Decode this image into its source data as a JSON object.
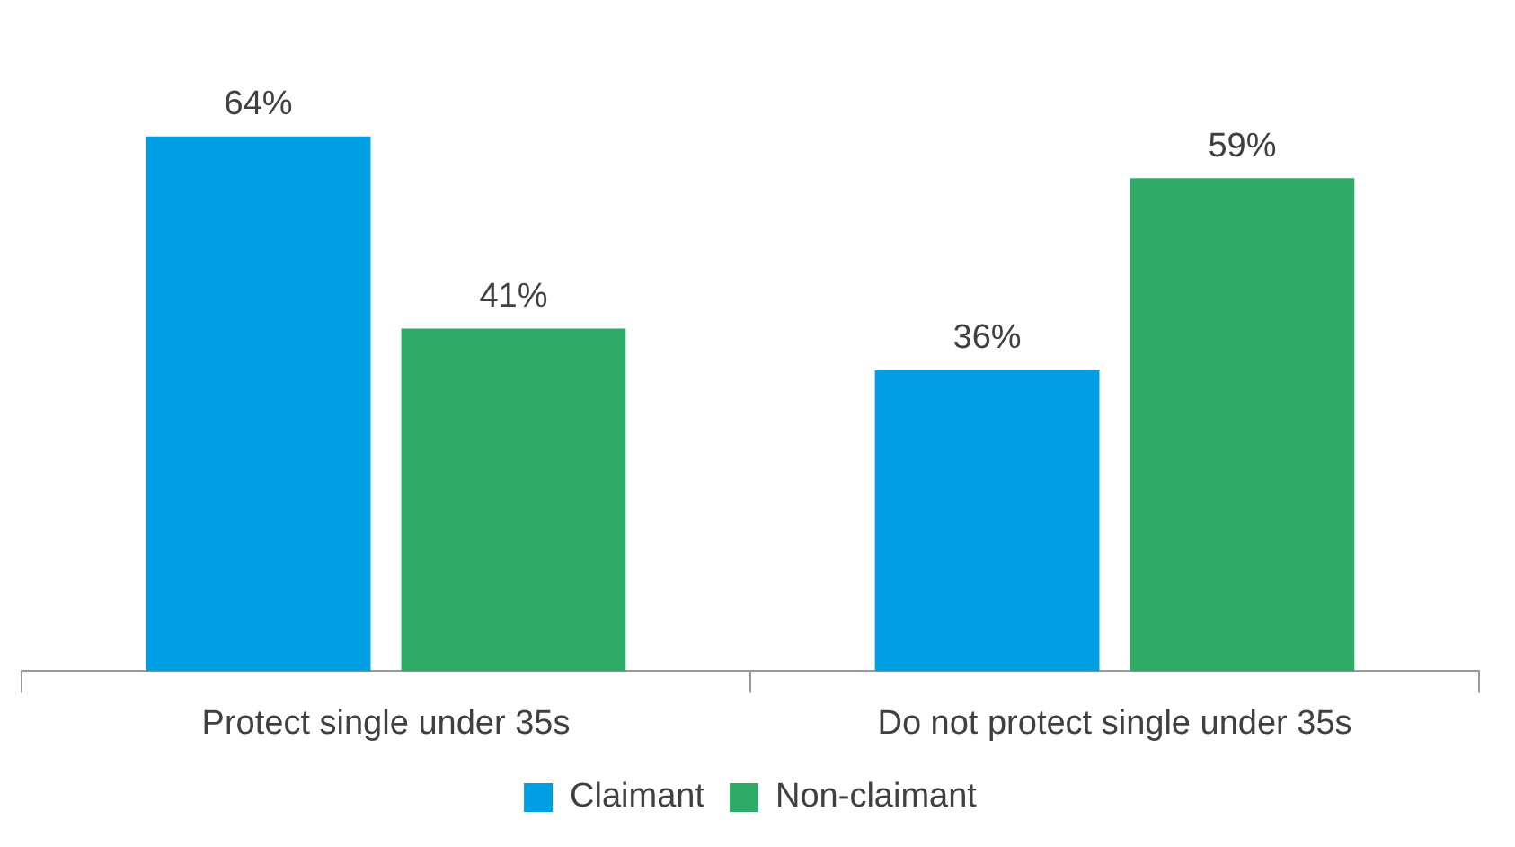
{
  "chart_data": {
    "type": "bar",
    "categories": [
      "Protect single under 35s",
      "Do not protect single under 35s"
    ],
    "series": [
      {
        "name": "Claimant",
        "color": "#009fe3",
        "values": [
          64,
          36
        ],
        "value_labels": [
          "64%",
          "36%"
        ]
      },
      {
        "name": "Non-claimant",
        "color": "#2eab66",
        "values": [
          41,
          59
        ],
        "value_labels": [
          "41%",
          "59%"
        ]
      }
    ],
    "tick_labels": "x",
    "grid": false,
    "legend": "bottom"
  }
}
